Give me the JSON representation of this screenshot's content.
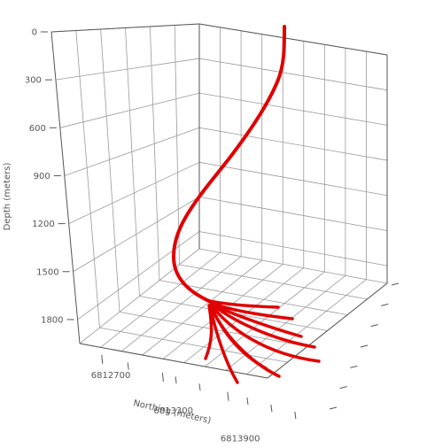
{
  "chart_data": {
    "type": "line",
    "title": "",
    "y_axis": {
      "label": "Depth (meters)",
      "range": [
        0,
        1950
      ],
      "ticks": [
        0,
        300,
        600,
        900,
        1200,
        1500,
        1800
      ],
      "tick_labels": [
        "0",
        "300",
        "600",
        "900",
        "1200",
        "1500",
        "1800"
      ],
      "inverted": true
    },
    "x_axis": {
      "label": "Northing (meters)",
      "ticks": [
        6812700,
        6813300,
        6813900
      ],
      "tick_labels": [
        "6812700",
        "6813300",
        "6813900"
      ]
    },
    "grid": true,
    "series_color": "#e00000",
    "main_well": {
      "name": "",
      "depth": [
        0,
        150,
        300,
        450,
        600,
        750,
        900,
        1050,
        1200,
        1350,
        1450,
        1580,
        1650
      ]
    },
    "laterals": {
      "count": 9
    }
  }
}
